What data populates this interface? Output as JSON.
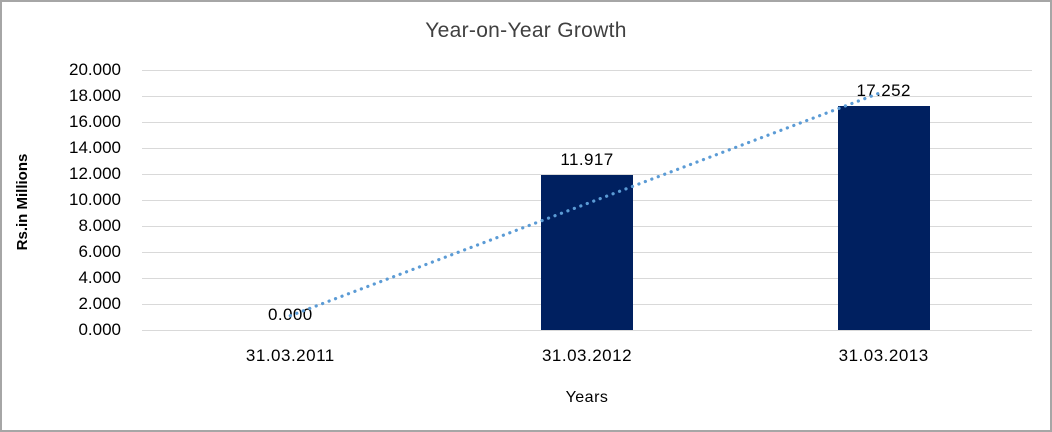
{
  "chart_data": {
    "type": "bar",
    "title": "Year-on-Year Growth",
    "xlabel": "Years",
    "ylabel": "Rs.in Millions",
    "categories": [
      "31.03.2011",
      "31.03.2012",
      "31.03.2013"
    ],
    "values": [
      0,
      11.917,
      17.252
    ],
    "data_labels": [
      "0.000",
      "11.917",
      "17.252"
    ],
    "ylim": [
      0,
      20
    ],
    "ytick_step": 2,
    "ytick_labels": [
      "20.000",
      "18.000",
      "16.000",
      "14.000",
      "12.000",
      "10.000",
      "8.000",
      "6.000",
      "4.000",
      "2.000",
      "0.000"
    ],
    "grid": true,
    "legend": false,
    "bar_color": "#002060",
    "trendline": {
      "kind": "linear-regression",
      "style": "dotted",
      "color": "#5b9bd5"
    },
    "gridline_color": "#d9d9d9",
    "frame_border_color": "#a6a6a6"
  }
}
